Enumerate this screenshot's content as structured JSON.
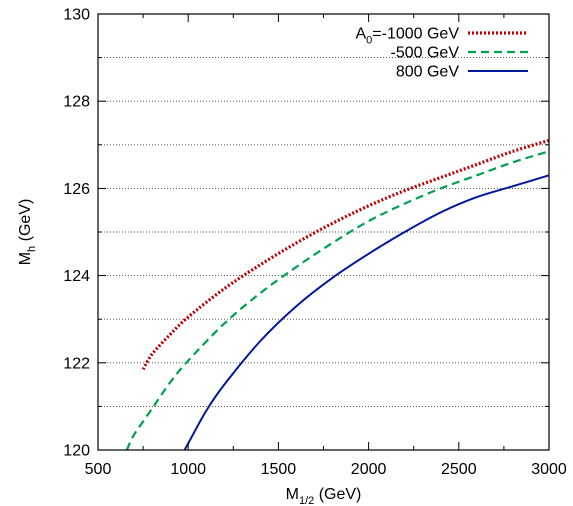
{
  "chart_data": {
    "type": "line",
    "title": "",
    "xlabel": {
      "main": "M",
      "sub": "1/2",
      "unit": " (GeV)"
    },
    "ylabel": {
      "main": "M",
      "sub": "h",
      "unit": " (GeV)"
    },
    "xlim": [
      500,
      3000
    ],
    "ylim": [
      120,
      130
    ],
    "xticks": [
      500,
      1000,
      1500,
      2000,
      2500,
      3000
    ],
    "yticks": [
      120,
      122,
      124,
      126,
      128,
      130
    ],
    "grid": "horizontal dotted lines every 1 GeV",
    "legend_position": "top-right",
    "series": [
      {
        "legend": {
          "main": "A",
          "sub": "0",
          "rest": "=-1000 GeV"
        },
        "color": "#c00000",
        "style": "dotted",
        "x": [
          750,
          800,
          900,
          1000,
          1200,
          1400,
          1600,
          1800,
          2000,
          2200,
          2400,
          2600,
          2800,
          3000
        ],
        "y": [
          121.85,
          122.2,
          122.65,
          123.05,
          123.7,
          124.25,
          124.75,
          125.2,
          125.6,
          125.95,
          126.25,
          126.55,
          126.85,
          127.1
        ]
      },
      {
        "legend": {
          "main": "",
          "sub": "",
          "rest": "-500 GeV"
        },
        "color": "#00a050",
        "style": "dashed",
        "x": [
          660,
          700,
          800,
          900,
          1000,
          1200,
          1400,
          1600,
          1800,
          2000,
          2200,
          2400,
          2600,
          2800,
          3000
        ],
        "y": [
          120.0,
          120.35,
          120.95,
          121.55,
          122.05,
          122.9,
          123.6,
          124.2,
          124.75,
          125.25,
          125.65,
          126.0,
          126.3,
          126.6,
          126.85
        ]
      },
      {
        "legend": {
          "main": "",
          "sub": "",
          "rest": "800 GeV"
        },
        "color": "#0018a0",
        "style": "solid",
        "x": [
          980,
          1000,
          1100,
          1200,
          1400,
          1600,
          1800,
          2000,
          2200,
          2400,
          2600,
          2800,
          3000
        ],
        "y": [
          120.0,
          120.15,
          120.9,
          121.5,
          122.5,
          123.3,
          123.95,
          124.5,
          125.0,
          125.45,
          125.8,
          126.05,
          126.3
        ]
      }
    ]
  }
}
